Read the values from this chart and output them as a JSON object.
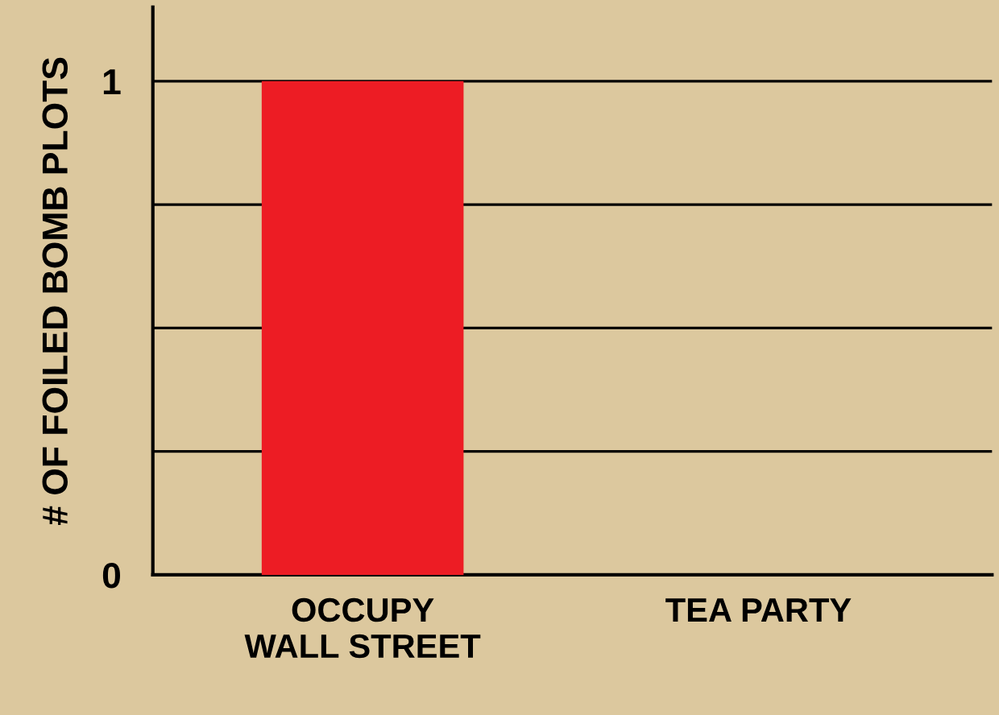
{
  "chart_data": {
    "type": "bar",
    "ylabel": "# OF FOILED BOMB PLOTS",
    "categories": [
      "OCCUPY\nWALL STREET",
      "TEA PARTY"
    ],
    "values": [
      1,
      0
    ],
    "color": "#ed1c24",
    "ylim": [
      0,
      1.15
    ],
    "yticks": [
      0,
      {
        "value": 0.25,
        "label": null
      },
      {
        "value": 0.5,
        "label": null
      },
      {
        "value": 0.75,
        "label": null
      },
      1
    ],
    "grid": "y"
  }
}
